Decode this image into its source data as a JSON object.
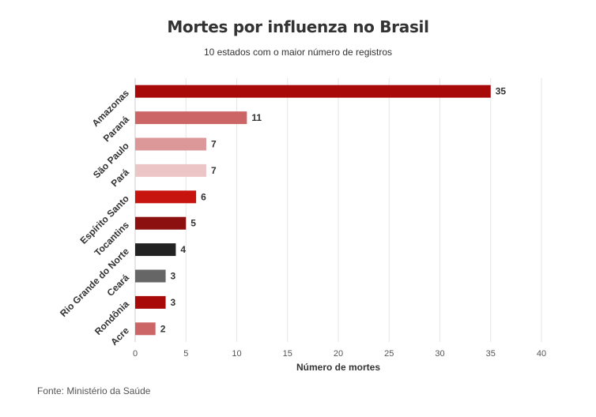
{
  "chart_data": {
    "type": "bar",
    "orientation": "horizontal",
    "title": "Mortes por influenza no Brasil",
    "subtitle": "10 estados com o maior número de registros",
    "xlabel": "Número de mortes",
    "ylabel": "",
    "xlim": [
      0,
      40
    ],
    "xticks": [
      "0",
      "5",
      "10",
      "15",
      "20",
      "25",
      "30",
      "35",
      "40"
    ],
    "grid": true,
    "categories": [
      "Amazonas",
      "Paraná",
      "São Paulo",
      "Pará",
      "Espírito Santo",
      "Tocantins",
      "Rio Grande do Norte",
      "Ceará",
      "Rondônia",
      "Acre"
    ],
    "values": [
      35,
      11,
      7,
      7,
      6,
      5,
      4,
      3,
      3,
      2
    ],
    "data_labels": [
      "35",
      "11",
      "7",
      "7",
      "6",
      "5",
      "4",
      "3",
      "3",
      "2"
    ],
    "colors": [
      "#a80a0a",
      "#cc6666",
      "#dc9898",
      "#ecc6c6",
      "#c8140f",
      "#8c1010",
      "#222222",
      "#666666",
      "#a80a0a",
      "#cc6666"
    ],
    "source": "Fonte: Ministério da Saúde"
  }
}
